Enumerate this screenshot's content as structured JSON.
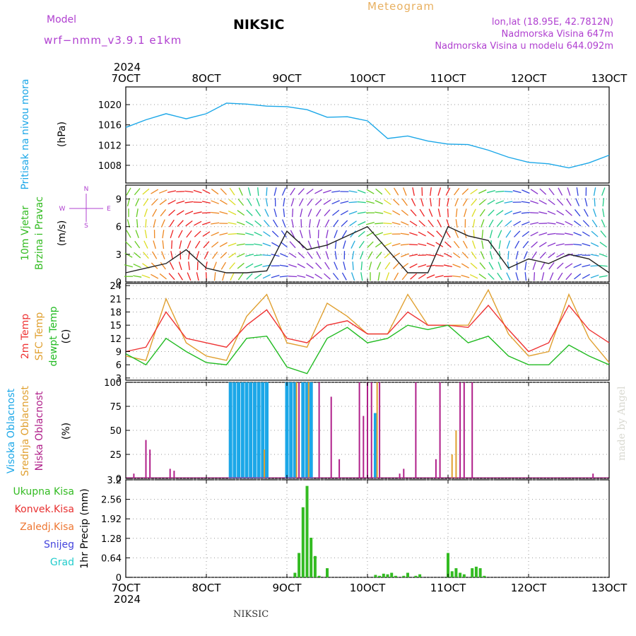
{
  "header": {
    "model_label": "Model",
    "model_name": "wrf−nmm_v3.9.1  e1km",
    "station": "NIKSIC",
    "product": "Meteogram",
    "lonlat": "lon,lat (18.95E, 42.7812N)",
    "elevation": "Nadmorska Visina 647m",
    "model_elevation": "Nadmorska Visina u modelu 644.092m",
    "credit": "made by Angel",
    "footer_station": "NIKSIC"
  },
  "colors": {
    "pressure": "#1ba7e8",
    "t2m": "#ee3333",
    "tsfc": "#e0a030",
    "dewpt": "#22bb22",
    "high_cloud": "#1ba7e8",
    "mid_cloud": "#e0a030",
    "low_cloud": "#b0208a",
    "total_precip": "#33bb22",
    "conv_precip": "#e83030",
    "frz_precip": "#ee7733",
    "snow": "#4444dd",
    "hail": "#22cccc",
    "accent_purple": "#b040d0",
    "title_orange": "#e8b060"
  },
  "chart_data": [
    {
      "type": "line",
      "ylabel": [
        "Pritisak na nivou mora",
        "(hPa)"
      ],
      "ylim": [
        1004.5,
        1023.5
      ],
      "yticks": [
        "1008",
        "1012",
        "1016",
        "1020"
      ],
      "x_ticks": [
        "7OCT",
        "8OCT",
        "9OCT",
        "10OCT",
        "11OCT",
        "12OCT",
        "13OCT"
      ],
      "x_year": "2024",
      "grid": true,
      "series": [
        {
          "name": "Pritisak na nivou mora",
          "x": [
            0,
            0.25,
            0.5,
            0.75,
            1.0,
            1.25,
            1.5,
            1.75,
            2.0,
            2.25,
            2.5,
            2.75,
            3.0,
            3.25,
            3.5,
            3.75,
            4.0,
            4.25,
            4.5,
            4.75,
            5.0,
            5.25,
            5.5,
            5.75,
            6.0
          ],
          "y": [
            1015.5,
            1017,
            1018.2,
            1017.2,
            1018.2,
            1020.3,
            1020.1,
            1019.7,
            1019.6,
            1019.0,
            1017.5,
            1017.6,
            1016.8,
            1013.3,
            1013.8,
            1012.8,
            1012.2,
            1012.1,
            1011.0,
            1009.6,
            1008.6,
            1008.3,
            1007.5,
            1008.5,
            1010.0
          ]
        }
      ]
    },
    {
      "type": "line",
      "ylabel": [
        "10m Vjetar",
        "Brzina i Pravac",
        "(m/s)"
      ],
      "ylim": [
        0,
        10.5
      ],
      "yticks": [
        "0",
        "3",
        "6",
        "9"
      ],
      "compass": {
        "n": "N",
        "s": "S",
        "e": "E",
        "w": "W"
      },
      "series": [
        {
          "name": "10m Vjetar Brzina",
          "x": [
            0,
            0.25,
            0.5,
            0.75,
            1.0,
            1.25,
            1.5,
            1.75,
            2.0,
            2.25,
            2.5,
            2.75,
            3.0,
            3.25,
            3.5,
            3.75,
            4.0,
            4.25,
            4.5,
            4.75,
            5.0,
            5.25,
            5.5,
            5.75,
            6.0
          ],
          "y": [
            1.0,
            1.5,
            2.0,
            3.5,
            1.5,
            1.0,
            1.0,
            1.2,
            5.5,
            3.5,
            4.0,
            5.0,
            6.0,
            3.5,
            1.0,
            1.0,
            6.0,
            5.0,
            4.5,
            1.5,
            2.5,
            2.0,
            3.0,
            2.5,
            1.0
          ]
        }
      ]
    },
    {
      "type": "line",
      "ylabel": [
        "2m Temp",
        "SFC Temp",
        "dewpt Temp",
        "(C)"
      ],
      "ylim": [
        2.5,
        24.5
      ],
      "yticks": [
        "3",
        "6",
        "9",
        "12",
        "15",
        "18",
        "21",
        "24"
      ],
      "series": [
        {
          "name": "2m Temp",
          "x": [
            0,
            0.25,
            0.5,
            0.75,
            1.0,
            1.25,
            1.5,
            1.75,
            2.0,
            2.25,
            2.5,
            2.75,
            3.0,
            3.25,
            3.5,
            3.75,
            4.0,
            4.25,
            4.5,
            4.75,
            5.0,
            5.25,
            5.5,
            5.75,
            6.0
          ],
          "y": [
            9,
            10,
            18,
            12,
            11,
            10,
            15,
            18.5,
            12,
            11,
            15,
            16,
            13,
            13,
            18,
            15,
            15,
            14.5,
            19.5,
            14,
            9,
            11,
            19.5,
            14,
            11
          ]
        },
        {
          "name": "SFC Temp",
          "x": [
            0,
            0.25,
            0.5,
            0.75,
            1.0,
            1.25,
            1.5,
            1.75,
            2.0,
            2.25,
            2.5,
            2.75,
            3.0,
            3.25,
            3.5,
            3.75,
            4.0,
            4.25,
            4.5,
            4.75,
            5.0,
            5.25,
            5.5,
            5.75,
            6.0
          ],
          "y": [
            8,
            7,
            21,
            11,
            8,
            7,
            17,
            22,
            11,
            10,
            20,
            17,
            13,
            13,
            22,
            15,
            15,
            15,
            23,
            13,
            8,
            9,
            22,
            12,
            6.5
          ]
        },
        {
          "name": "dewpt Temp",
          "x": [
            0,
            0.25,
            0.5,
            0.75,
            1.0,
            1.25,
            1.5,
            1.75,
            2.0,
            2.25,
            2.5,
            2.75,
            3.0,
            3.25,
            3.5,
            3.75,
            4.0,
            4.25,
            4.5,
            4.75,
            5.0,
            5.25,
            5.5,
            5.75,
            6.0
          ],
          "y": [
            8.5,
            6,
            12,
            9,
            6.5,
            6,
            12,
            12.5,
            5.5,
            4,
            12,
            14.5,
            11,
            12,
            15,
            14,
            15,
            11,
            12.5,
            8,
            6,
            6,
            10.5,
            8,
            6
          ]
        }
      ]
    },
    {
      "type": "bar",
      "ylabel": [
        "Visoka Oblacnost",
        "Srednja Oblacnost",
        "Niska Oblacnost",
        "(%)"
      ],
      "ylim": [
        0,
        100
      ],
      "yticks": [
        "0",
        "25",
        "50",
        "75",
        "100"
      ],
      "series": [
        {
          "name": "Visoka Oblacnost",
          "x": [
            1.3,
            1.35,
            1.4,
            1.45,
            1.5,
            1.55,
            1.6,
            1.65,
            1.7,
            1.75,
            2.0,
            2.05,
            2.1,
            2.2,
            2.25,
            2.3,
            3.1
          ],
          "values": [
            100,
            100,
            100,
            100,
            100,
            100,
            100,
            100,
            100,
            100,
            100,
            100,
            100,
            100,
            100,
            100,
            68
          ]
        },
        {
          "name": "Srednja Oblacnost",
          "x": [
            1.72,
            2.12,
            2.27,
            3.12,
            4.1,
            4.05
          ],
          "values": [
            30,
            100,
            100,
            100,
            50,
            25
          ]
        },
        {
          "name": "Niska Oblacnost",
          "x": [
            0.1,
            0.25,
            0.3,
            0.55,
            0.6,
            2.15,
            2.4,
            2.55,
            2.65,
            2.9,
            2.95,
            3.0,
            3.05,
            3.15,
            3.4,
            3.45,
            3.6,
            3.85,
            3.9,
            4.15,
            4.2,
            4.3,
            5.8
          ],
          "values": [
            5,
            40,
            30,
            10,
            8,
            100,
            100,
            85,
            20,
            100,
            65,
            100,
            100,
            100,
            5,
            10,
            100,
            20,
            100,
            100,
            100,
            100,
            5
          ]
        }
      ]
    },
    {
      "type": "bar",
      "ylabel": [
        "Ukupna Kisa",
        "Konvek.Kisa",
        "Zaledj.Kisa",
        "Snijeg",
        "Grad",
        "1hr Precip (mm)"
      ],
      "ylim": [
        0,
        3.2
      ],
      "yticks": [
        "0",
        "0.64",
        "1.28",
        "1.92",
        "2.56",
        "3.2"
      ],
      "series": [
        {
          "name": "Ukupna Kisa",
          "x": [
            2.1,
            2.15,
            2.2,
            2.25,
            2.3,
            2.35,
            2.4,
            2.5,
            3.1,
            3.15,
            3.2,
            3.25,
            3.3,
            3.35,
            3.45,
            3.5,
            3.6,
            3.65,
            4.0,
            4.05,
            4.1,
            4.15,
            4.2,
            4.3,
            4.35,
            4.4,
            4.45
          ],
          "values": [
            0.15,
            0.8,
            2.3,
            3.0,
            1.3,
            0.7,
            0.05,
            0.3,
            0.08,
            0.05,
            0.12,
            0.1,
            0.15,
            0.05,
            0.05,
            0.15,
            0.05,
            0.1,
            0.8,
            0.2,
            0.3,
            0.15,
            0.1,
            0.3,
            0.35,
            0.3,
            0.05
          ]
        }
      ]
    }
  ]
}
